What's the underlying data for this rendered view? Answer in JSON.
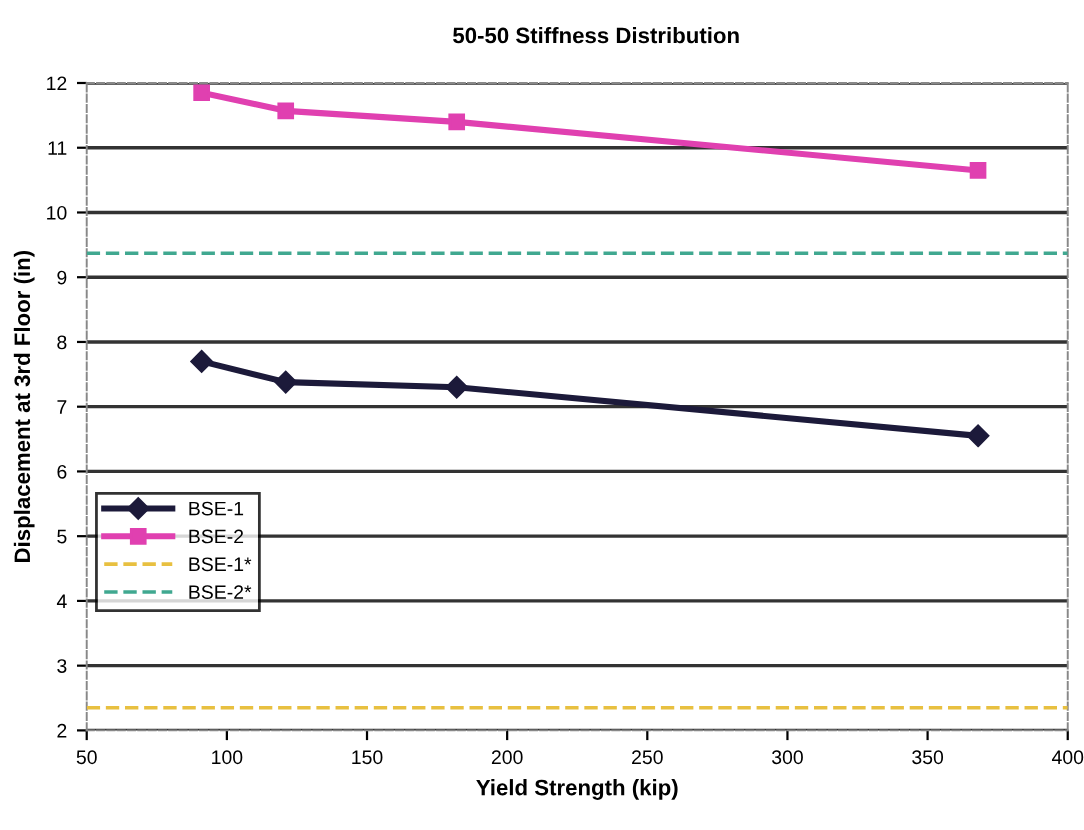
{
  "chart_data": {
    "type": "line",
    "title": "50-50 Stiffness Distribution",
    "xlabel": "Yield Strength (kip)",
    "ylabel": "Displacement at 3rd Floor (in)",
    "xlim": [
      50,
      400
    ],
    "xticks": [
      50,
      100,
      150,
      200,
      250,
      300,
      350,
      400
    ],
    "ylim": [
      2,
      12
    ],
    "yticks": [
      2,
      3,
      4,
      5,
      6,
      7,
      8,
      9,
      10,
      11,
      12
    ],
    "grid": "y",
    "legend": "lower left",
    "series": [
      {
        "name": "BSE-1",
        "color": "#1c1a3a",
        "x": [
          91,
          121,
          182,
          368
        ],
        "values": [
          7.7,
          7.38,
          7.3,
          6.55
        ],
        "marker": "diamond",
        "line_style": "solid"
      },
      {
        "name": "BSE-2",
        "color": "#e040b0",
        "x": [
          91,
          121,
          182,
          368
        ],
        "values": [
          11.85,
          11.57,
          11.4,
          10.65
        ],
        "marker": "square",
        "line_style": "solid"
      },
      {
        "name": "BSE-1*",
        "color": "#e8c040",
        "x": [
          50,
          400
        ],
        "values": [
          2.35,
          2.35
        ],
        "marker": "none",
        "line_style": "dashed"
      },
      {
        "name": "BSE-2*",
        "color": "#40a890",
        "x": [
          50,
          400
        ],
        "values": [
          9.37,
          9.37
        ],
        "marker": "none",
        "line_style": "dashed"
      }
    ]
  }
}
